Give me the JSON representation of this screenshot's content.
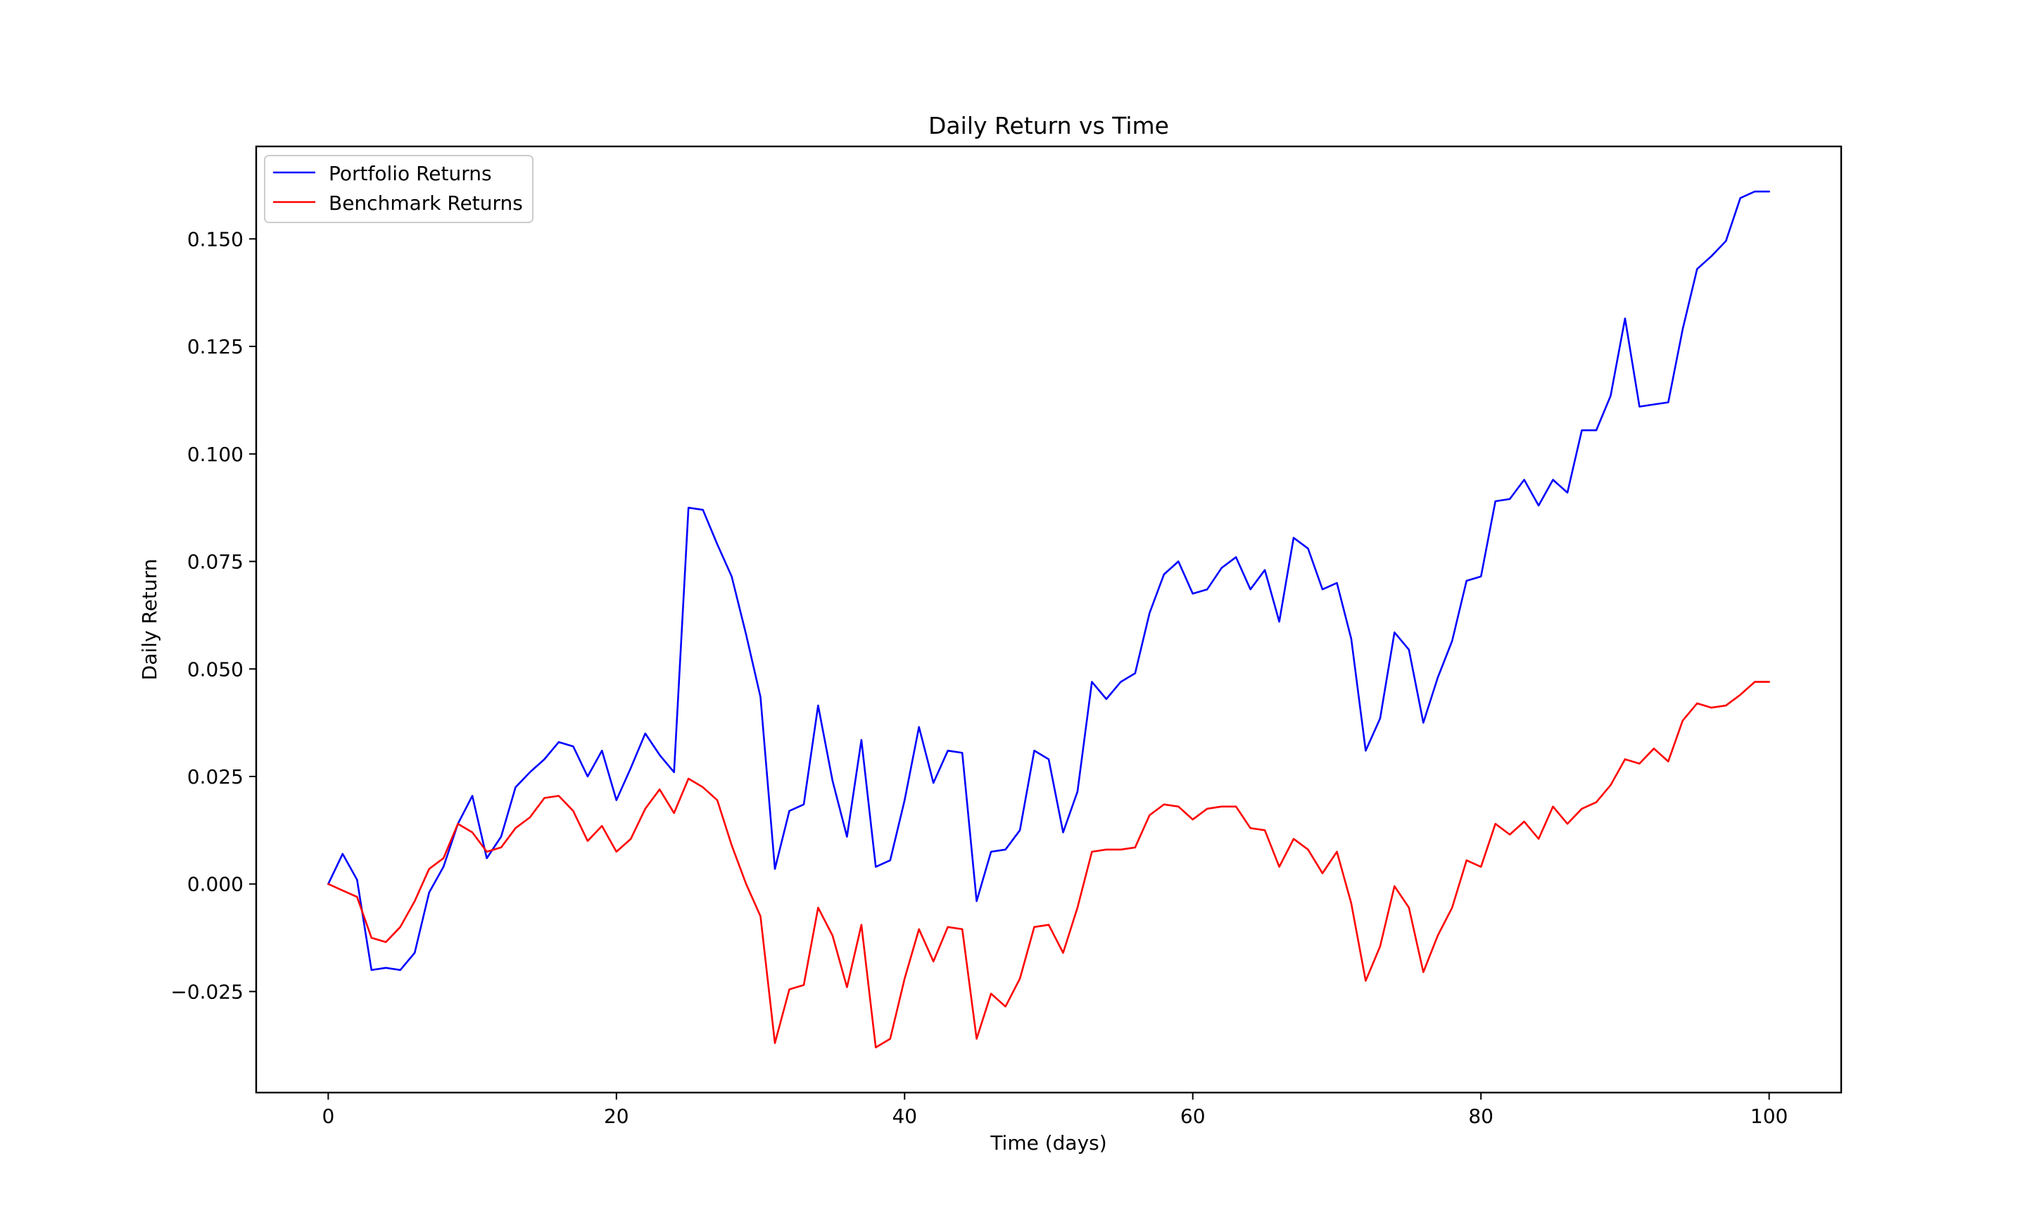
{
  "chart_data": {
    "type": "line",
    "title": "Daily Return vs Time",
    "xlabel": "Time (days)",
    "ylabel": "Daily Return",
    "xlim": [
      -5,
      105
    ],
    "ylim": [
      -0.0485,
      0.1715
    ],
    "x_ticks": [
      0,
      20,
      40,
      60,
      80,
      100
    ],
    "x_tick_labels": [
      "0",
      "20",
      "40",
      "60",
      "80",
      "100"
    ],
    "y_ticks": [
      -0.025,
      0.0,
      0.025,
      0.05,
      0.075,
      0.1,
      0.125,
      0.15
    ],
    "y_tick_labels": [
      "−0.025",
      "0.000",
      "0.025",
      "0.050",
      "0.075",
      "0.100",
      "0.125",
      "0.150"
    ],
    "grid": false,
    "legend_position": "top-left",
    "colors": {
      "portfolio": "#0000ff",
      "benchmark": "#ff0000"
    },
    "x": [
      0,
      1,
      2,
      3,
      4,
      5,
      6,
      7,
      8,
      9,
      10,
      11,
      12,
      13,
      14,
      15,
      16,
      17,
      18,
      19,
      20,
      21,
      22,
      23,
      24,
      25,
      26,
      27,
      28,
      29,
      30,
      31,
      32,
      33,
      34,
      35,
      36,
      37,
      38,
      39,
      40,
      41,
      42,
      43,
      44,
      45,
      46,
      47,
      48,
      49,
      50,
      51,
      52,
      53,
      54,
      55,
      56,
      57,
      58,
      59,
      60,
      61,
      62,
      63,
      64,
      65,
      66,
      67,
      68,
      69,
      70,
      71,
      72,
      73,
      74,
      75,
      76,
      77,
      78,
      79,
      80,
      81,
      82,
      83,
      84,
      85,
      86,
      87,
      88,
      89,
      90,
      91,
      92,
      93,
      94,
      95,
      96,
      97,
      98,
      99,
      100
    ],
    "series": [
      {
        "name": "Portfolio Returns",
        "color": "#0000ff",
        "values": [
          0.0,
          0.007,
          0.001,
          -0.02,
          -0.0195,
          -0.02,
          -0.016,
          -0.002,
          0.004,
          0.014,
          0.0205,
          0.006,
          0.011,
          0.0225,
          0.026,
          0.029,
          0.033,
          0.032,
          0.025,
          0.031,
          0.0195,
          0.027,
          0.035,
          0.03,
          0.026,
          0.0875,
          0.087,
          0.079,
          0.0715,
          0.058,
          0.0435,
          0.0035,
          0.017,
          0.0185,
          0.0415,
          0.024,
          0.011,
          0.0335,
          0.004,
          0.0055,
          0.0195,
          0.0365,
          0.0235,
          0.031,
          0.0305,
          -0.004,
          0.0075,
          0.008,
          0.0125,
          0.031,
          0.029,
          0.012,
          0.0215,
          0.047,
          0.043,
          0.047,
          0.049,
          0.063,
          0.072,
          0.075,
          0.0675,
          0.0685,
          0.0735,
          0.076,
          0.0685,
          0.073,
          0.061,
          0.0805,
          0.078,
          0.0685,
          0.07,
          0.057,
          0.031,
          0.0385,
          0.0585,
          0.0545,
          0.0375,
          0.048,
          0.0565,
          0.0705,
          0.0715,
          0.089,
          0.0895,
          0.094,
          0.088,
          0.094,
          0.091,
          0.1055,
          0.1055,
          0.1135,
          0.1315,
          0.111,
          0.1115,
          0.112,
          0.129,
          0.143,
          0.146,
          0.1495,
          0.1595,
          0.161,
          0.161
        ]
      },
      {
        "name": "Benchmark Returns",
        "color": "#ff0000",
        "values": [
          0.0,
          -0.0015,
          -0.003,
          -0.0125,
          -0.0135,
          -0.01,
          -0.004,
          0.0035,
          0.006,
          0.014,
          0.012,
          0.0075,
          0.0085,
          0.013,
          0.0155,
          0.02,
          0.0205,
          0.017,
          0.01,
          0.0135,
          0.0075,
          0.0105,
          0.0175,
          0.022,
          0.0165,
          0.0245,
          0.0225,
          0.0195,
          0.009,
          0.0,
          -0.0075,
          -0.037,
          -0.0245,
          -0.0235,
          -0.0055,
          -0.012,
          -0.024,
          -0.0095,
          -0.038,
          -0.036,
          -0.022,
          -0.0105,
          -0.018,
          -0.01,
          -0.0105,
          -0.036,
          -0.0255,
          -0.0285,
          -0.022,
          -0.01,
          -0.0095,
          -0.016,
          -0.0055,
          0.0075,
          0.008,
          0.008,
          0.0085,
          0.016,
          0.0185,
          0.018,
          0.015,
          0.0175,
          0.018,
          0.018,
          0.013,
          0.0125,
          0.004,
          0.0105,
          0.008,
          0.0025,
          0.0075,
          -0.0045,
          -0.0225,
          -0.0145,
          -0.0005,
          -0.0055,
          -0.0205,
          -0.012,
          -0.0055,
          0.0055,
          0.004,
          0.014,
          0.0115,
          0.0145,
          0.0105,
          0.018,
          0.014,
          0.0175,
          0.019,
          0.023,
          0.029,
          0.028,
          0.0315,
          0.0285,
          0.038,
          0.042,
          0.041,
          0.0415,
          0.044,
          0.047,
          0.047
        ]
      }
    ]
  }
}
